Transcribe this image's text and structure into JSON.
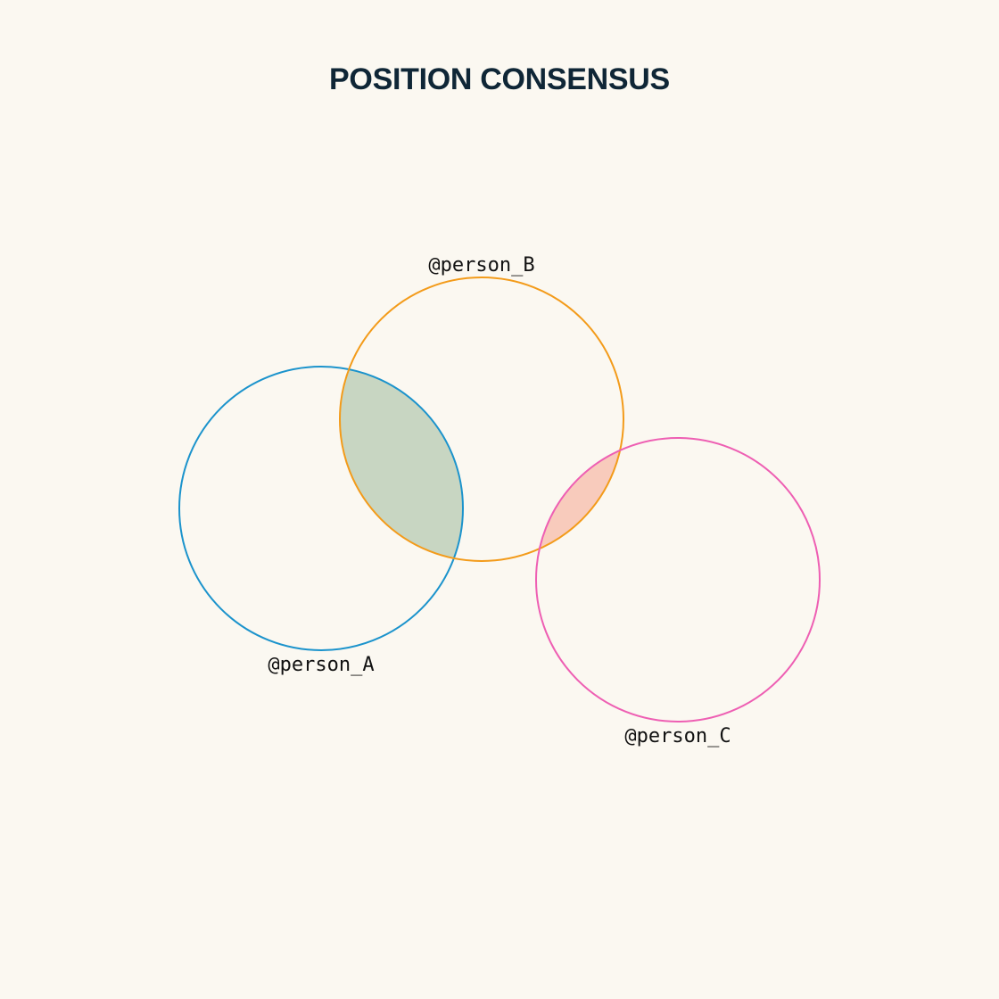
{
  "title": "POSITION CONSENSUS",
  "sets": [
    {
      "id": "A",
      "label": "@person_A",
      "color": "#1b93cc"
    },
    {
      "id": "B",
      "label": "@person_B",
      "color": "#f39b1a"
    },
    {
      "id": "C",
      "label": "@person_C",
      "color": "#ee5fb3"
    }
  ],
  "overlaps": [
    {
      "sets": [
        "A",
        "B"
      ],
      "fill": "#c8d6c2"
    },
    {
      "sets": [
        "B",
        "C"
      ],
      "fill": "#f8cbbc"
    }
  ],
  "colors": {
    "background": "#fbf8f1",
    "title": "#0f2636"
  }
}
